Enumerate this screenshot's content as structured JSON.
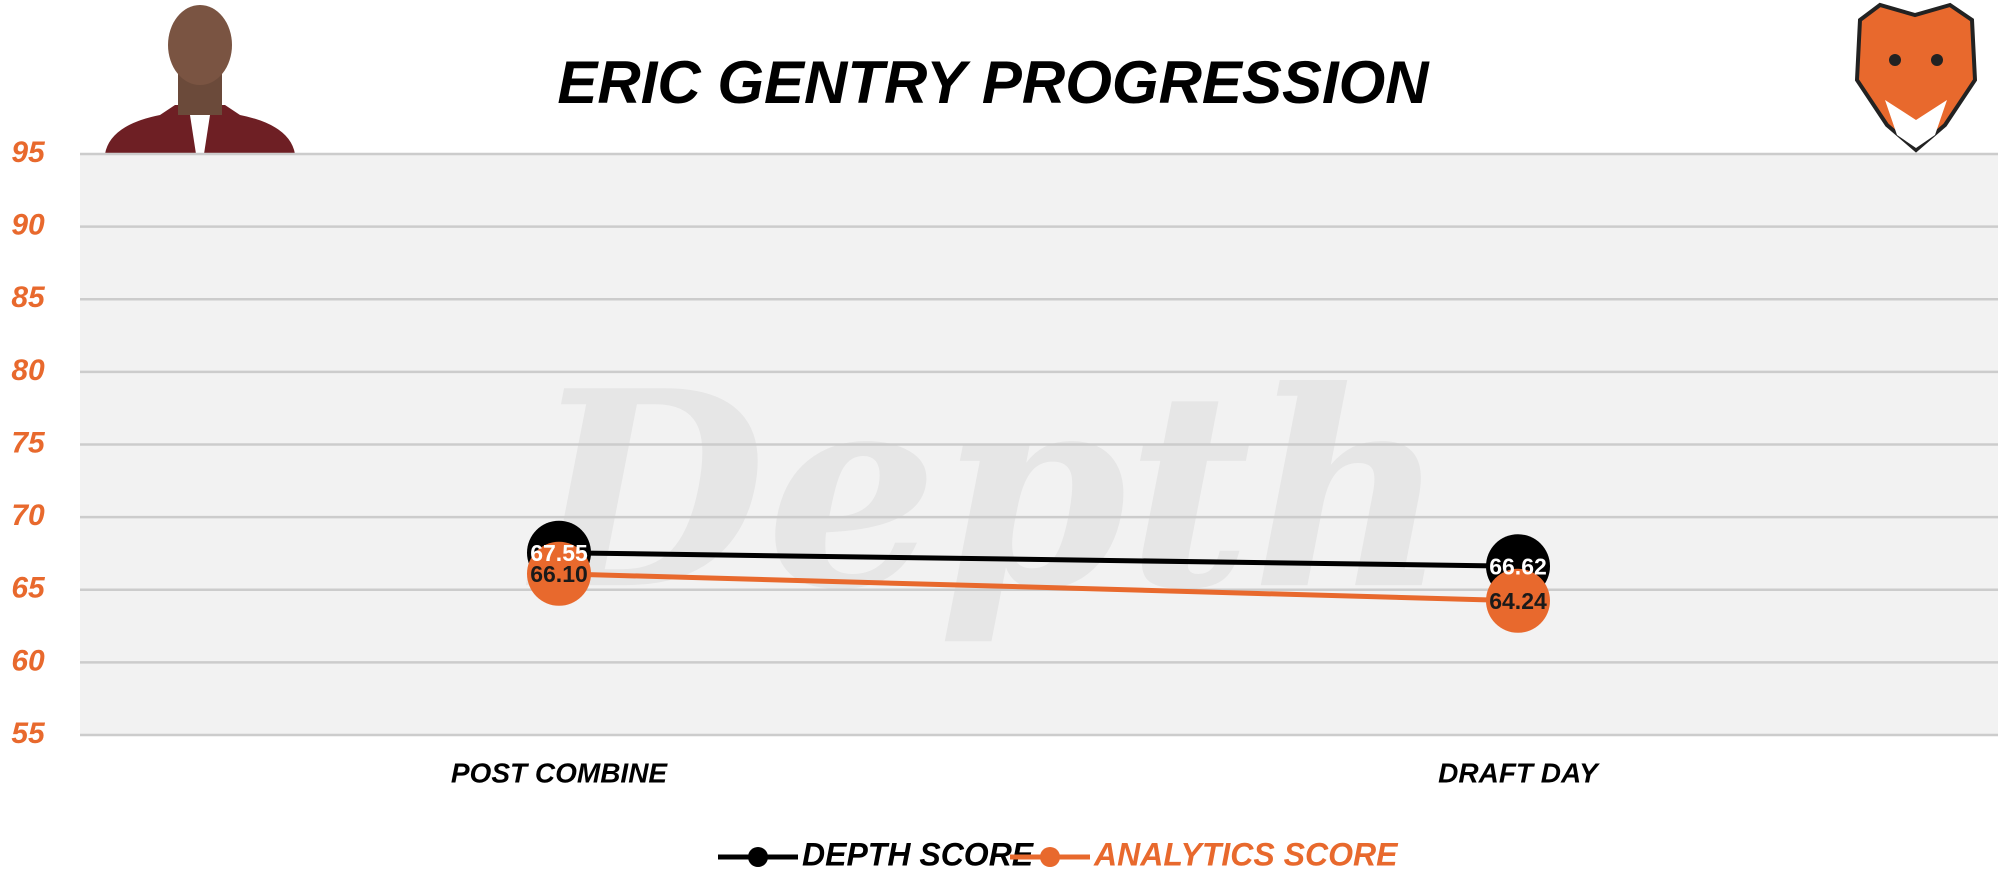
{
  "chart_data": {
    "type": "line",
    "title": "ERIC GENTRY PROGRESSION",
    "watermark": "Depth",
    "categories": [
      "POST COMBINE",
      "DRAFT DAY"
    ],
    "series": [
      {
        "name": "DEPTH SCORE",
        "color": "#000000",
        "values": [
          67.55,
          66.62
        ],
        "value_labels": [
          "67.55",
          "66.62"
        ]
      },
      {
        "name": "ANALYTICS SCORE",
        "color": "#e8692d",
        "values": [
          66.1,
          64.24
        ],
        "value_labels": [
          "66.10",
          "64.24"
        ]
      }
    ],
    "ylim": [
      55,
      95
    ],
    "yticks": [
      55,
      60,
      65,
      70,
      75,
      80,
      85,
      90,
      95
    ],
    "grid": true
  }
}
